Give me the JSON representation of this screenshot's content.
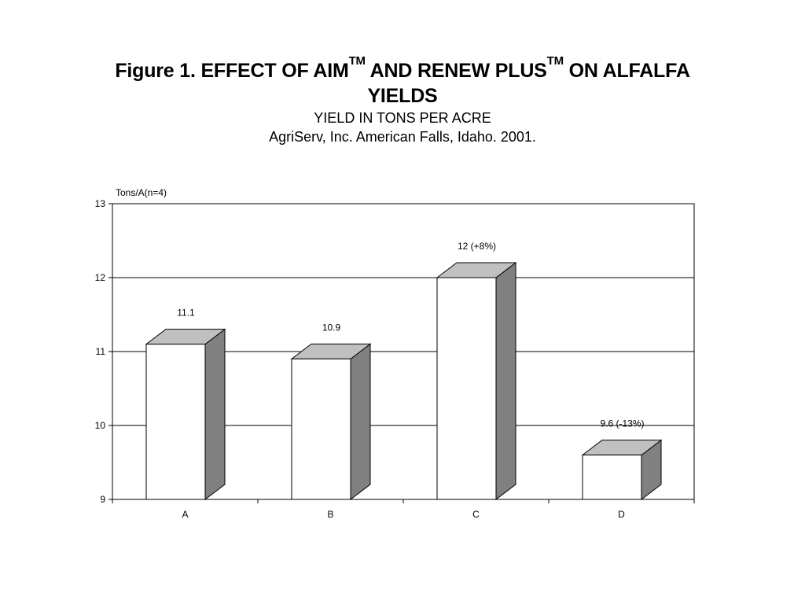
{
  "title": {
    "line1_part1": "Figure 1. EFFECT OF AIM",
    "tm1": "TM",
    "line1_part2": " AND RENEW PLUS",
    "tm2": "TM",
    "line1_part3": " ON ALFALFA",
    "line2": "YIELDS",
    "subtitle1": "YIELD IN TONS PER ACRE",
    "subtitle2": "AgriServ, Inc.  American Falls, Idaho. 2001."
  },
  "chart_data": {
    "type": "bar",
    "title": "Figure 1. EFFECT OF AIMTM AND RENEW PLUSTM ON ALFALFA YIELDS",
    "subtitle": "YIELD IN TONS PER ACRE / AgriServ, Inc.  American Falls, Idaho. 2001.",
    "xlabel": "",
    "ylabel": "Tons/A(n=4)",
    "categories": [
      "A",
      "B",
      "C",
      "D"
    ],
    "values": [
      11.1,
      10.9,
      12.0,
      9.6
    ],
    "data_labels": [
      "11.1",
      "10.9",
      "12 (+8%)",
      "9.6 (-13%)"
    ],
    "ylim": [
      9,
      13
    ],
    "yticks": [
      9,
      10,
      11,
      12,
      13
    ],
    "grid": true,
    "style": "3d",
    "colors": {
      "bar_face": "#ffffff",
      "bar_side": "#808080",
      "bar_top": "#c0c0c0",
      "axis": "#000000",
      "grid": "#000000"
    }
  }
}
